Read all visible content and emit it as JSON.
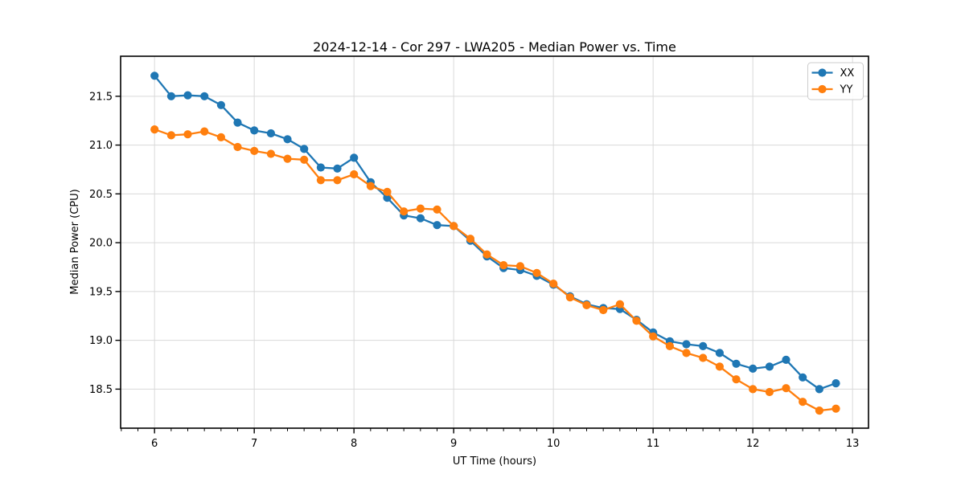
{
  "chart_data": {
    "type": "line",
    "title": "2024-12-14 - Cor 297 - LWA205 - Median Power vs. Time",
    "xlabel": "UT Time (hours)",
    "ylabel": "Median Power (CPU)",
    "xlim": [
      5.66,
      13.16
    ],
    "ylim": [
      18.1,
      21.91
    ],
    "xticks": [
      6,
      7,
      8,
      9,
      10,
      11,
      12,
      13
    ],
    "yticks": [
      18.5,
      19.0,
      19.5,
      20.0,
      20.5,
      21.0,
      21.5
    ],
    "x_minor_tick_step": 0.16667,
    "grid": true,
    "grid_color": "#d9d9d9",
    "background": "#ffffff",
    "legend": {
      "position": "upper right",
      "entries": [
        "XX",
        "YY"
      ]
    },
    "x": [
      6.0,
      6.167,
      6.333,
      6.5,
      6.667,
      6.833,
      7.0,
      7.167,
      7.333,
      7.5,
      7.667,
      7.833,
      8.0,
      8.167,
      8.333,
      8.5,
      8.667,
      8.833,
      9.0,
      9.167,
      9.333,
      9.5,
      9.667,
      9.833,
      10.0,
      10.167,
      10.333,
      10.5,
      10.667,
      10.833,
      11.0,
      11.167,
      11.333,
      11.5,
      11.667,
      11.833,
      12.0,
      12.167,
      12.333,
      12.5,
      12.667,
      12.833
    ],
    "series": [
      {
        "name": "XX",
        "color": "#1f77b4",
        "marker": "circle",
        "values": [
          21.71,
          21.5,
          21.51,
          21.5,
          21.41,
          21.23,
          21.15,
          21.12,
          21.06,
          20.96,
          20.77,
          20.76,
          20.87,
          20.62,
          20.46,
          20.28,
          20.25,
          20.18,
          20.17,
          20.02,
          19.86,
          19.74,
          19.72,
          19.66,
          19.57,
          19.45,
          19.37,
          19.33,
          19.32,
          19.21,
          19.08,
          18.99,
          18.96,
          18.94,
          18.87,
          18.76,
          18.71,
          18.73,
          18.8,
          18.62,
          18.5,
          18.56
        ]
      },
      {
        "name": "YY",
        "color": "#ff7f0e",
        "marker": "circle",
        "values": [
          21.16,
          21.1,
          21.11,
          21.14,
          21.08,
          20.98,
          20.94,
          20.91,
          20.86,
          20.85,
          20.64,
          20.64,
          20.7,
          20.58,
          20.52,
          20.32,
          20.35,
          20.34,
          20.17,
          20.04,
          19.88,
          19.77,
          19.76,
          19.69,
          19.58,
          19.44,
          19.36,
          19.31,
          19.37,
          19.2,
          19.04,
          18.94,
          18.87,
          18.82,
          18.73,
          18.6,
          18.5,
          18.47,
          18.51,
          18.37,
          18.28,
          18.3
        ]
      }
    ]
  }
}
